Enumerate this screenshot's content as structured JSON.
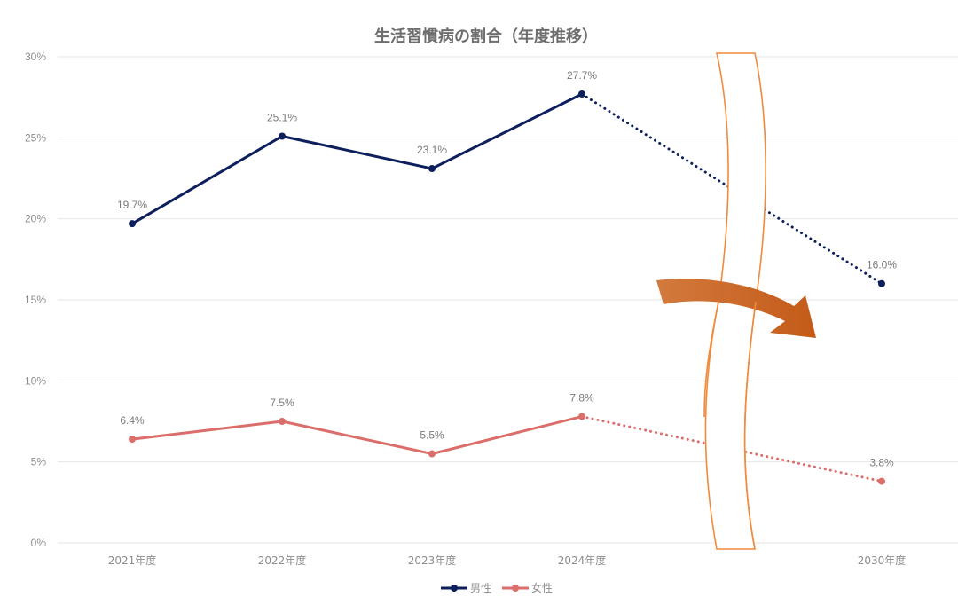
{
  "chart_data": {
    "type": "line",
    "title": "生活習慣病の割合（年度推移）",
    "xlabel": "",
    "ylabel": "",
    "categories": [
      "2021年度",
      "2022年度",
      "2023年度",
      "2024年度",
      "",
      "2030年度"
    ],
    "y_ticks": [
      "0%",
      "5%",
      "10%",
      "15%",
      "20%",
      "25%",
      "30%"
    ],
    "ylim": [
      0,
      30
    ],
    "grid": true,
    "legend_position": "bottom",
    "series": [
      {
        "name": "男性",
        "color": "#0d1f5c",
        "values": [
          19.7,
          25.1,
          23.1,
          27.7,
          null,
          16.0
        ],
        "labels": [
          "19.7%",
          "25.1%",
          "23.1%",
          "27.7%",
          "",
          "16.0%"
        ],
        "projection_from_index": 3
      },
      {
        "name": "女性",
        "color": "#db6e6a",
        "values": [
          6.4,
          7.5,
          5.5,
          7.8,
          null,
          3.8
        ],
        "labels": [
          "6.4%",
          "7.5%",
          "5.5%",
          "7.8%",
          "",
          "3.8%"
        ],
        "projection_from_index": 3
      }
    ],
    "annotations": [
      {
        "type": "axis-break-band",
        "between": [
          "2024年度",
          "2030年度"
        ],
        "stroke": "#f08a3c"
      },
      {
        "type": "downward-trend-arrow",
        "color": "#c8601f"
      }
    ]
  },
  "colors": {
    "male": "#0d1f5c",
    "female": "#db6e6a",
    "break_band": "#f08a3c",
    "arrow_start": "#d27a3e",
    "arrow_end": "#c45a18",
    "grid": "#e6e6e6"
  }
}
